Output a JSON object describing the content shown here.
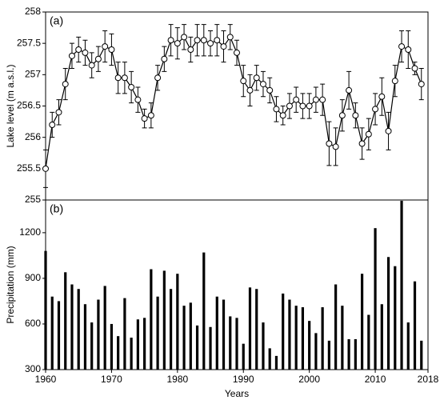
{
  "chart_data": [
    {
      "type": "line",
      "title": "(a)",
      "y_label": "Lake level (m a.s.l.)",
      "color": "#000000",
      "x": [
        1960,
        1961,
        1962,
        1963,
        1964,
        1965,
        1966,
        1967,
        1968,
        1969,
        1970,
        1971,
        1972,
        1973,
        1974,
        1975,
        1976,
        1977,
        1978,
        1979,
        1980,
        1981,
        1982,
        1983,
        1984,
        1985,
        1986,
        1987,
        1988,
        1989,
        1990,
        1991,
        1992,
        1993,
        1994,
        1995,
        1996,
        1997,
        1998,
        1999,
        2000,
        2001,
        2002,
        2003,
        2004,
        2005,
        2006,
        2007,
        2008,
        2009,
        2010,
        2011,
        2012,
        2013,
        2014,
        2015,
        2016,
        2017
      ],
      "values": [
        255.5,
        256.2,
        256.4,
        256.85,
        257.3,
        257.4,
        257.35,
        257.15,
        257.25,
        257.45,
        257.4,
        256.95,
        256.95,
        256.8,
        256.6,
        256.3,
        256.35,
        256.95,
        257.25,
        257.55,
        257.5,
        257.6,
        257.4,
        257.55,
        257.55,
        257.5,
        257.55,
        257.45,
        257.6,
        257.35,
        256.9,
        256.75,
        256.95,
        256.85,
        256.75,
        256.45,
        256.35,
        256.5,
        256.6,
        256.5,
        256.5,
        256.6,
        256.6,
        255.9,
        255.85,
        256.35,
        256.75,
        256.35,
        255.9,
        256.05,
        256.45,
        256.65,
        256.1,
        256.9,
        257.45,
        257.4,
        257.1,
        256.85
      ],
      "errors": [
        0.3,
        0.2,
        0.2,
        0.25,
        0.2,
        0.2,
        0.2,
        0.2,
        0.2,
        0.25,
        0.25,
        0.25,
        0.25,
        0.25,
        0.2,
        0.15,
        0.2,
        0.2,
        0.2,
        0.25,
        0.25,
        0.2,
        0.2,
        0.25,
        0.25,
        0.2,
        0.25,
        0.25,
        0.2,
        0.2,
        0.25,
        0.25,
        0.2,
        0.2,
        0.2,
        0.2,
        0.15,
        0.2,
        0.2,
        0.2,
        0.2,
        0.2,
        0.25,
        0.35,
        0.3,
        0.25,
        0.3,
        0.2,
        0.25,
        0.25,
        0.25,
        0.3,
        0.3,
        0.25,
        0.25,
        0.3,
        0.1,
        0.25
      ],
      "xlim": [
        1960,
        2018
      ],
      "ylim": [
        255,
        258
      ],
      "yticks": [
        255,
        255.5,
        256,
        256.5,
        257,
        257.5,
        258
      ]
    },
    {
      "type": "bar",
      "title": "(b)",
      "y_label": "Precipitation (mm)",
      "x_label": "Years",
      "color": "#000000",
      "x": [
        1960,
        1961,
        1962,
        1963,
        1964,
        1965,
        1966,
        1967,
        1968,
        1969,
        1970,
        1971,
        1972,
        1973,
        1974,
        1975,
        1976,
        1977,
        1978,
        1979,
        1980,
        1981,
        1982,
        1983,
        1984,
        1985,
        1986,
        1987,
        1988,
        1989,
        1990,
        1991,
        1992,
        1993,
        1994,
        1995,
        1996,
        1997,
        1998,
        1999,
        2000,
        2001,
        2002,
        2003,
        2004,
        2005,
        2006,
        2007,
        2008,
        2009,
        2010,
        2011,
        2012,
        2013,
        2014,
        2015,
        2016,
        2017
      ],
      "values": [
        1080,
        780,
        750,
        940,
        860,
        830,
        730,
        610,
        760,
        850,
        600,
        520,
        770,
        510,
        630,
        640,
        960,
        780,
        950,
        830,
        930,
        720,
        740,
        590,
        1070,
        580,
        780,
        760,
        650,
        640,
        470,
        840,
        830,
        610,
        440,
        390,
        800,
        760,
        720,
        710,
        620,
        540,
        710,
        490,
        860,
        720,
        500,
        500,
        930,
        660,
        1230,
        730,
        1040,
        980,
        1410,
        610,
        880,
        490
      ],
      "xlim": [
        1960,
        2018
      ],
      "xticks": [
        1960,
        1970,
        1980,
        1990,
        2000,
        2010,
        2018
      ],
      "ylim": [
        300,
        1415
      ],
      "yticks": [
        300,
        600,
        900,
        1200
      ]
    }
  ]
}
